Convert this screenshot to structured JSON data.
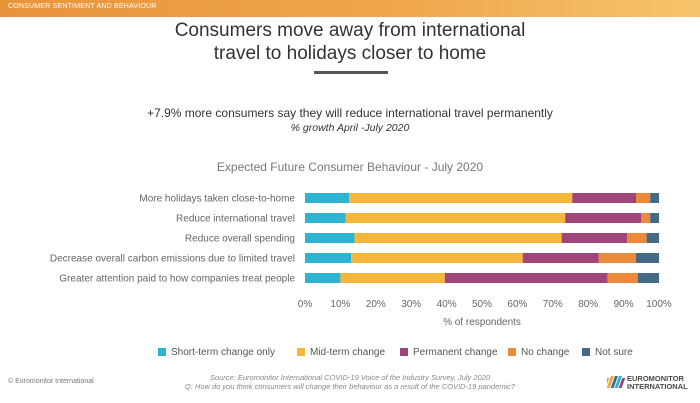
{
  "header": {
    "section_label": "CONSUMER SENTIMENT AND BEHAVIOUR"
  },
  "title": {
    "line1": "Consumers move away from international",
    "line2": "travel to holidays closer to home"
  },
  "subtitle": "+7.9% more consumers say they will reduce international travel permanently",
  "subtitle_note": "% growth April -July 2020",
  "chart_data": {
    "type": "bar",
    "orientation": "horizontal",
    "stacked": true,
    "title": "Expected Future Consumer Behaviour - July 2020",
    "xlabel": "% of respondents",
    "ylabel": "",
    "xlim": [
      0,
      100
    ],
    "x_ticks": [
      "0%",
      "10%",
      "20%",
      "30%",
      "40%",
      "50%",
      "60%",
      "70%",
      "80%",
      "90%",
      "100%"
    ],
    "grid": false,
    "legend_position": "bottom",
    "categories": [
      "More holidays taken close-to-home",
      "Reduce international travel",
      "Reduce overall spending",
      "Decrease overall carbon emissions due to limited travel",
      "Greater attention paid to how companies treat people"
    ],
    "series": [
      {
        "name": "Short-term change only",
        "color": "#2eb3d3",
        "values": [
          12.5,
          11.5,
          14,
          13,
          10
        ]
      },
      {
        "name": "Mid-term change",
        "color": "#f6b63c",
        "values": [
          63,
          62,
          58.5,
          48.5,
          29.5
        ]
      },
      {
        "name": "Permanent change",
        "color": "#a0457a",
        "values": [
          18,
          21.5,
          18.5,
          21.5,
          46
        ]
      },
      {
        "name": "No change",
        "color": "#ec8a3b",
        "values": [
          4,
          2.5,
          5.5,
          10.5,
          8.5
        ]
      },
      {
        "name": "Not sure",
        "color": "#456a86",
        "values": [
          2.5,
          2.5,
          3.5,
          6.5,
          6
        ]
      }
    ]
  },
  "footer": {
    "copyright": "© Euromonitor International",
    "source_line1": "Source: Euromonitor International COVID-19 Voice of the Industry Survey, July 2020",
    "source_line2": "Q: How do you think consumers will change their behaviour as a result of the COVID-19 pandemic?",
    "logo_line1": "EUROMONITOR",
    "logo_line2": "INTERNATIONAL"
  },
  "colors": {
    "accent_orange": "#f0a54a",
    "title_text": "#333333"
  }
}
